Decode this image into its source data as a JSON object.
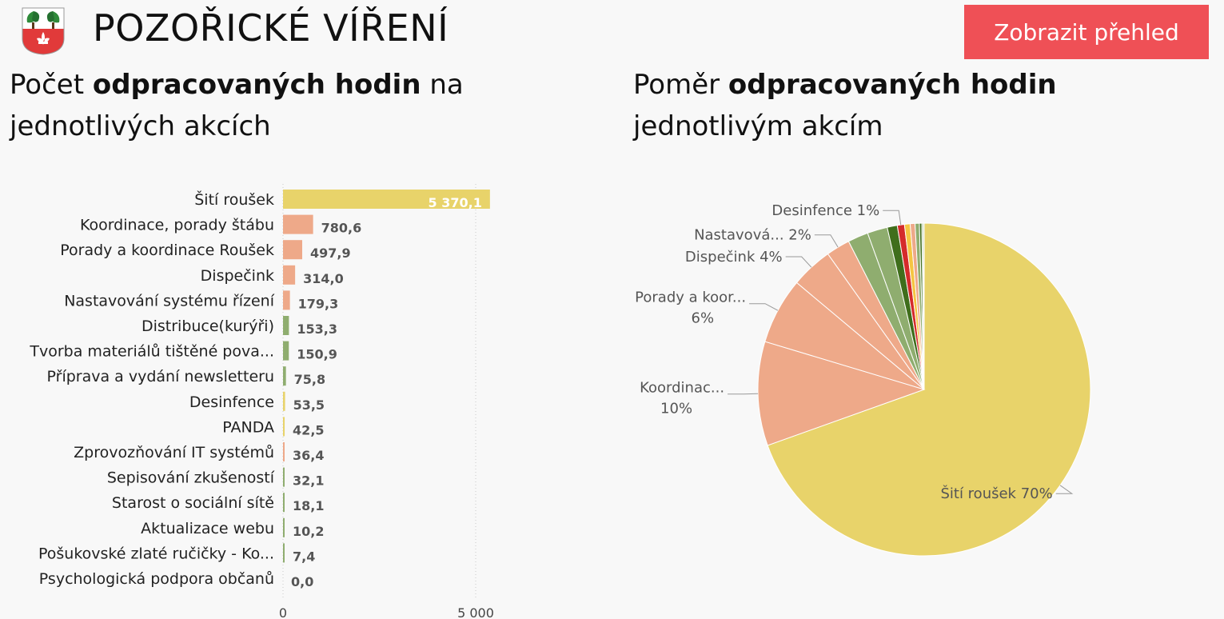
{
  "header": {
    "app_title": "POZOŘICKÉ VÍŘENÍ",
    "cta_label": "Zobrazit přehled"
  },
  "bar_panel": {
    "title_pre": "Počet ",
    "title_bold": "odpracovaných hodin",
    "title_post": " na jednotlivých akcích"
  },
  "pie_panel": {
    "title_pre": "Poměr ",
    "title_bold": "odpracovaných hodin",
    "title_post": " jednotlivým akcím"
  },
  "chart_data": [
    {
      "type": "bar",
      "orientation": "horizontal",
      "categories": [
        "Šití roušek",
        "Koordinace, porady štábu",
        "Porady a koordinace Roušek",
        "Dispečink",
        "Nastavování systému řízení",
        "Distribuce(kurýři)",
        "Tvorba materiálů tištěné pova...",
        "Příprava a vydání newsletteru",
        "Desinfence",
        "PANDA",
        "Zprovozňování IT systémů",
        "Sepisování zkušeností",
        "Starost o sociální sítě",
        "Aktualizace webu",
        "Pošukovské zlaté ručičky - Ko...",
        "Psychologická podpora občanů"
      ],
      "values": [
        5370.1,
        780.6,
        497.9,
        314.0,
        179.3,
        153.3,
        150.9,
        75.8,
        53.5,
        42.5,
        36.4,
        32.1,
        18.1,
        10.2,
        7.4,
        0.0
      ],
      "value_labels": [
        "5 370,1",
        "780,6",
        "497,9",
        "314,0",
        "179,3",
        "153,3",
        "150,9",
        "75,8",
        "53,5",
        "42,5",
        "36,4",
        "32,1",
        "18,1",
        "10,2",
        "7,4",
        "0,0"
      ],
      "colors": [
        "#e8d36a",
        "#eea989",
        "#eea989",
        "#eea989",
        "#eea989",
        "#8fad6f",
        "#8fad6f",
        "#8fad6f",
        "#e8d36a",
        "#e8d36a",
        "#eea989",
        "#8fad6f",
        "#8fad6f",
        "#8fad6f",
        "#8fad6f",
        "#8fad6f"
      ],
      "x_ticks": [
        0,
        5000
      ],
      "x_tick_labels": [
        "0",
        "5 000"
      ],
      "grid": "vertical dotted"
    },
    {
      "type": "pie",
      "slices": [
        {
          "category": "Šití roušek",
          "value": 5370.1,
          "color": "#e8d36a"
        },
        {
          "category": "Koordinace, porady štábu",
          "value": 780.6,
          "color": "#eea989"
        },
        {
          "category": "Porady a koordinace Roušek",
          "value": 497.9,
          "color": "#eea989"
        },
        {
          "category": "Dispečink",
          "value": 314.0,
          "color": "#eea989"
        },
        {
          "category": "Nastavování systému řízení",
          "value": 179.3,
          "color": "#eea989"
        },
        {
          "category": "Distribuce(kurýři)",
          "value": 153.3,
          "color": "#8fad6f"
        },
        {
          "category": "Tvorba materiálů tištěné pova...",
          "value": 150.9,
          "color": "#8fad6f"
        },
        {
          "category": "Příprava a vydání newsletteru",
          "value": 75.8,
          "color": "#3f6e1c"
        },
        {
          "category": "Desinfence",
          "value": 53.5,
          "color": "#d52b2b"
        },
        {
          "category": "PANDA",
          "value": 42.5,
          "color": "#f5c542"
        },
        {
          "category": "Zprovozňování IT systémů",
          "value": 36.4,
          "color": "#eea989"
        },
        {
          "category": "Sepisování zkušeností",
          "value": 32.1,
          "color": "#8fad6f"
        },
        {
          "category": "Starost o sociální sítě",
          "value": 18.1,
          "color": "#3f6e1c"
        },
        {
          "category": "Aktualizace webu",
          "value": 10.2,
          "color": "#8fad6f"
        },
        {
          "category": "Pošukovské zlaté ručičky - Ko...",
          "value": 7.4,
          "color": "#8fad6f"
        },
        {
          "category": "Psychologická podpora občanů",
          "value": 0.0,
          "color": "#8fad6f"
        }
      ],
      "data_labels": [
        {
          "slice": 0,
          "lines": [
            "Šití roušek 70%"
          ]
        },
        {
          "slice": 1,
          "lines": [
            "Koordinac...",
            "10%"
          ]
        },
        {
          "slice": 2,
          "lines": [
            "Porady a koor...",
            "6%"
          ]
        },
        {
          "slice": 3,
          "lines": [
            "Dispečink 4%"
          ]
        },
        {
          "slice": 4,
          "lines": [
            "Nastavová... 2%"
          ]
        },
        {
          "slice": 8,
          "lines": [
            "Desinfence 1%"
          ]
        }
      ]
    }
  ]
}
